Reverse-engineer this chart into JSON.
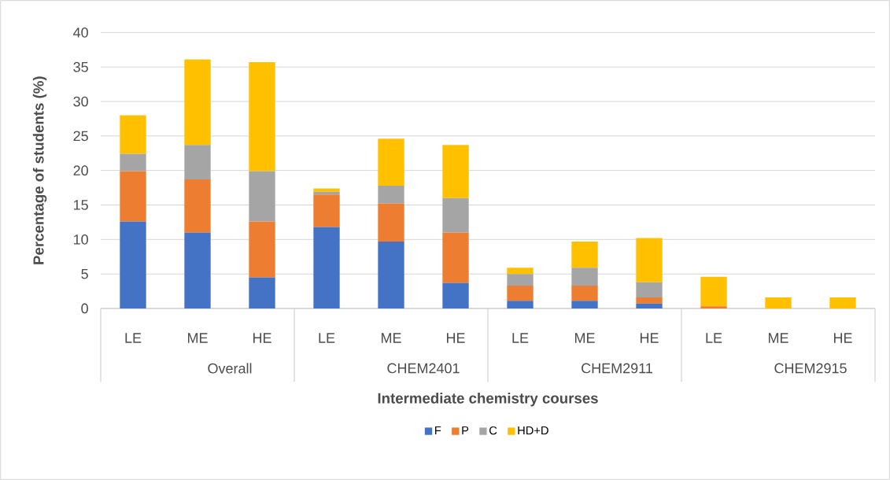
{
  "chart_data": {
    "type": "bar",
    "stacked": true,
    "categories": [
      "LE",
      "ME",
      "HE",
      "LE",
      "ME",
      "HE",
      "LE",
      "ME",
      "HE",
      "LE",
      "ME",
      "HE"
    ],
    "annotations": [
      "Overall",
      "CHEM2401",
      "CHEM2911",
      "CHEM2915"
    ],
    "xlabel": "Intermediate chemistry courses",
    "ylabel": "Percentage of students (%)",
    "ylim": [
      0,
      40
    ],
    "yticks": [
      0,
      5,
      10,
      15,
      20,
      25,
      30,
      35,
      40
    ],
    "grid": "y",
    "legend": "bottom",
    "series": [
      {
        "name": "F",
        "color": "#4472c4",
        "values": [
          12.6,
          11.0,
          4.5,
          11.8,
          9.7,
          3.7,
          1.1,
          1.1,
          0.7,
          0,
          0,
          0
        ]
      },
      {
        "name": "P",
        "color": "#ed7d31",
        "values": [
          7.3,
          7.7,
          8.1,
          4.7,
          5.5,
          7.3,
          2.2,
          2.2,
          0.9,
          0.3,
          0,
          0
        ]
      },
      {
        "name": "C",
        "color": "#a5a5a5",
        "values": [
          2.5,
          5.0,
          7.3,
          0.4,
          2.6,
          5.0,
          1.7,
          2.6,
          2.2,
          0,
          0,
          0
        ]
      },
      {
        "name": "HD+D",
        "color": "#ffc000",
        "values": [
          5.6,
          12.4,
          15.8,
          0.5,
          6.8,
          7.7,
          0.9,
          3.8,
          6.4,
          4.3,
          1.6,
          1.6
        ]
      }
    ]
  }
}
